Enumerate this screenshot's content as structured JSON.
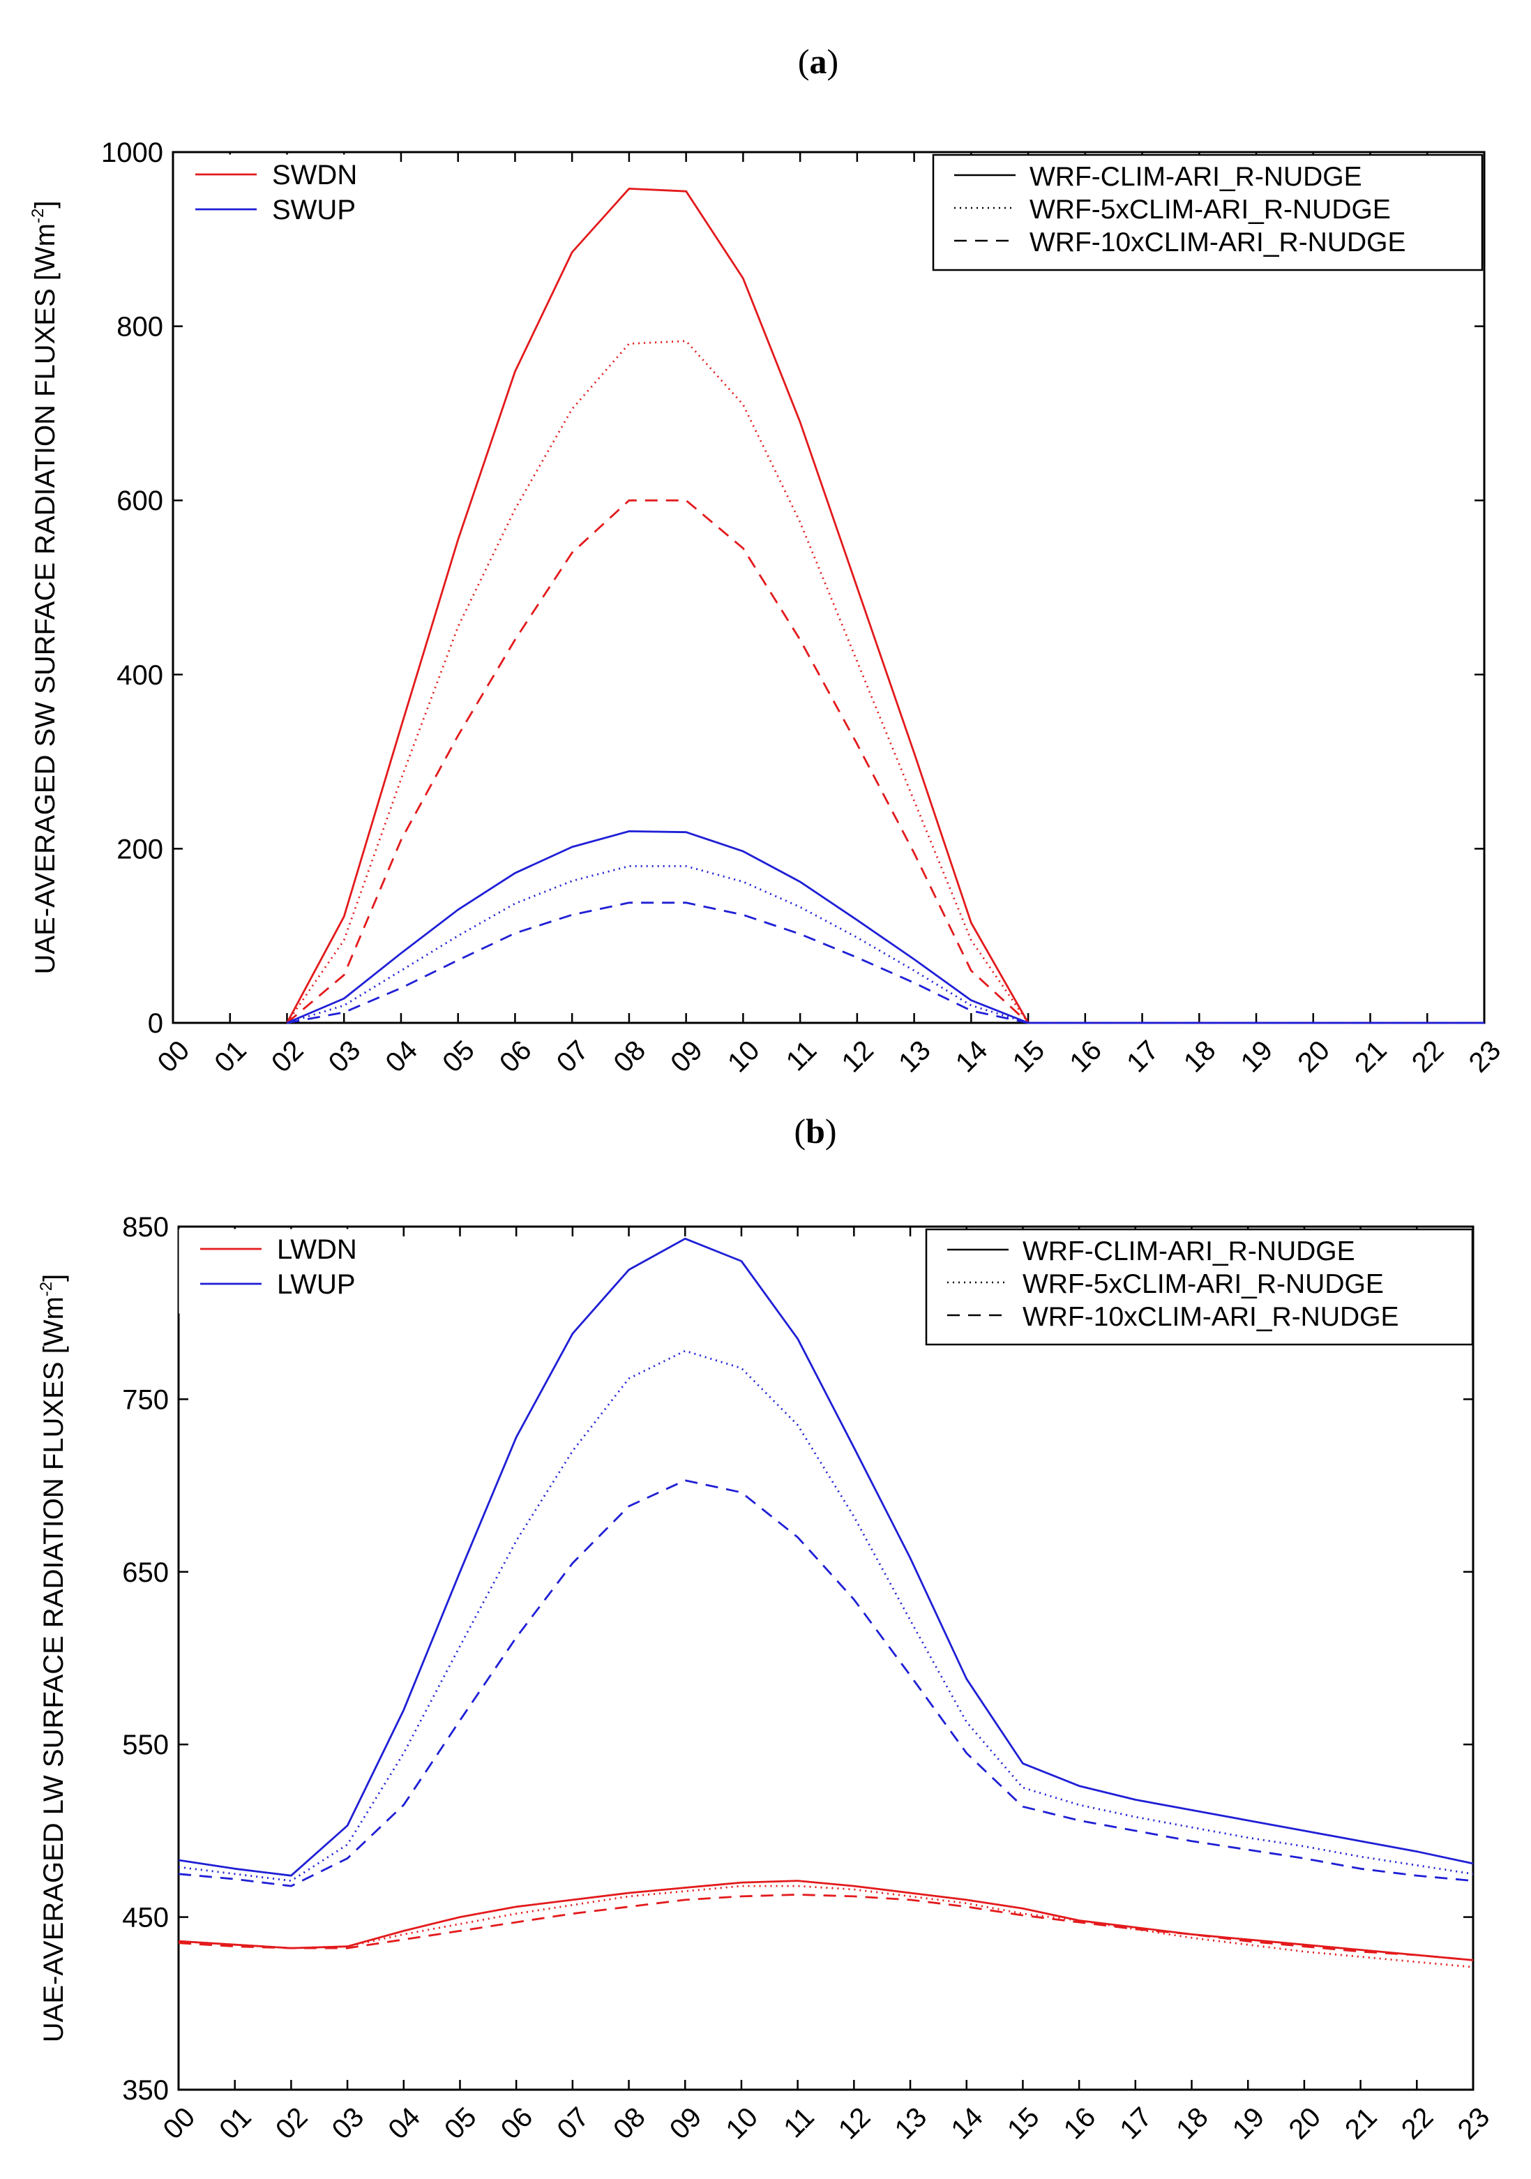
{
  "chart_data": [
    {
      "type": "line",
      "panel_label": "(a)",
      "panel_letter": "a",
      "ylabel": "UAE-AVERAGED SW SURFACE RADIATION FLUXES [Wm",
      "ylabel_sup": "-2",
      "ylabel_end": "]",
      "ylim": [
        0,
        1000
      ],
      "yticks": [
        0,
        200,
        400,
        600,
        800,
        1000
      ],
      "x": [
        "00",
        "01",
        "02",
        "03",
        "04",
        "05",
        "06",
        "07",
        "08",
        "09",
        "10",
        "11",
        "12",
        "13",
        "14",
        "15",
        "16",
        "17",
        "18",
        "19",
        "20",
        "21",
        "22",
        "23"
      ],
      "color_legend": [
        {
          "name": "SWDN",
          "color": "#e31a1c"
        },
        {
          "name": "SWUP",
          "color": "#1f1fd6"
        }
      ],
      "style_legend": [
        {
          "name": "WRF-CLIM-ARI_R-NUDGE",
          "dash": "solid"
        },
        {
          "name": "WRF-5xCLIM-ARI_R-NUDGE",
          "dash": "dotted"
        },
        {
          "name": "WRF-10xCLIM-ARI_R-NUDGE",
          "dash": "dashed"
        }
      ],
      "series": [
        {
          "name": "SWDN WRF-CLIM-ARI_R-NUDGE",
          "color": "#e31a1c",
          "dash": "solid",
          "values": [
            null,
            null,
            0,
            122,
            340,
            555,
            748,
            885,
            958,
            955,
            855,
            690,
            500,
            310,
            115,
            0,
            0,
            0,
            0,
            0,
            0,
            0,
            0,
            0
          ]
        },
        {
          "name": "SWDN WRF-5xCLIM-ARI_R-NUDGE",
          "color": "#e31a1c",
          "dash": "dotted",
          "values": [
            null,
            null,
            0,
            95,
            280,
            455,
            590,
            705,
            780,
            783,
            710,
            575,
            415,
            255,
            95,
            0,
            0,
            0,
            0,
            0,
            0,
            0,
            0,
            0
          ]
        },
        {
          "name": "SWDN WRF-10xCLIM-ARI_R-NUDGE",
          "color": "#e31a1c",
          "dash": "dashed",
          "values": [
            null,
            null,
            0,
            55,
            210,
            330,
            440,
            540,
            600,
            600,
            545,
            440,
            320,
            195,
            60,
            0,
            0,
            0,
            0,
            0,
            0,
            0,
            0,
            0
          ]
        },
        {
          "name": "SWUP WRF-CLIM-ARI_R-NUDGE",
          "color": "#1f1fd6",
          "dash": "solid",
          "values": [
            null,
            null,
            0,
            28,
            80,
            130,
            172,
            202,
            220,
            219,
            197,
            162,
            118,
            73,
            26,
            0,
            0,
            0,
            0,
            0,
            0,
            0,
            0,
            0
          ]
        },
        {
          "name": "SWUP WRF-5xCLIM-ARI_R-NUDGE",
          "color": "#1f1fd6",
          "dash": "dotted",
          "values": [
            null,
            null,
            0,
            20,
            60,
            100,
            137,
            163,
            180,
            180,
            162,
            133,
            98,
            60,
            20,
            0,
            0,
            0,
            0,
            0,
            0,
            0,
            0,
            0
          ]
        },
        {
          "name": "SWUP WRF-10xCLIM-ARI_R-NUDGE",
          "color": "#1f1fd6",
          "dash": "dashed",
          "values": [
            null,
            null,
            0,
            12,
            40,
            72,
            103,
            124,
            138,
            138,
            124,
            102,
            75,
            46,
            14,
            0,
            0,
            0,
            0,
            0,
            0,
            0,
            0,
            0
          ]
        }
      ]
    },
    {
      "type": "line",
      "panel_label": "(b)",
      "panel_letter": "b",
      "ylabel": "UAE-AVERAGED LW SURFACE RADIATION FLUXES [Wm",
      "ylabel_sup": "-2",
      "ylabel_end": "]",
      "ylim": [
        350,
        850
      ],
      "yticks": [
        350,
        450,
        550,
        650,
        750,
        850
      ],
      "x": [
        "00",
        "01",
        "02",
        "03",
        "04",
        "05",
        "06",
        "07",
        "08",
        "09",
        "10",
        "11",
        "12",
        "13",
        "14",
        "15",
        "16",
        "17",
        "18",
        "19",
        "20",
        "21",
        "22",
        "23"
      ],
      "color_legend": [
        {
          "name": "LWDN",
          "color": "#e31a1c"
        },
        {
          "name": "LWUP",
          "color": "#1f1fd6"
        }
      ],
      "style_legend": [
        {
          "name": "WRF-CLIM-ARI_R-NUDGE",
          "dash": "solid"
        },
        {
          "name": "WRF-5xCLIM-ARI_R-NUDGE",
          "dash": "dotted"
        },
        {
          "name": "WRF-10xCLIM-ARI_R-NUDGE",
          "dash": "dashed"
        }
      ],
      "series": [
        {
          "name": "LWDN WRF-CLIM-ARI_R-NUDGE",
          "color": "#e31a1c",
          "dash": "solid",
          "values": [
            436,
            434,
            432,
            433,
            442,
            450,
            456,
            460,
            464,
            467,
            470,
            471,
            468,
            464,
            460,
            455,
            448,
            444,
            440,
            437,
            434,
            431,
            428,
            425
          ]
        },
        {
          "name": "LWDN WRF-5xCLIM-ARI_R-NUDGE",
          "color": "#e31a1c",
          "dash": "dotted",
          "values": [
            436,
            434,
            432,
            433,
            440,
            446,
            452,
            457,
            462,
            465,
            468,
            468,
            466,
            462,
            458,
            452,
            448,
            443,
            438,
            434,
            430,
            427,
            424,
            421
          ]
        },
        {
          "name": "LWDN WRF-10xCLIM-ARI_R-NUDGE",
          "color": "#e31a1c",
          "dash": "dashed",
          "values": [
            435,
            433,
            432,
            432,
            437,
            442,
            447,
            452,
            456,
            460,
            462,
            463,
            462,
            460,
            456,
            451,
            447,
            443,
            440,
            436,
            433,
            430,
            428,
            425
          ]
        },
        {
          "name": "LWUP WRF-CLIM-ARI_R-NUDGE",
          "color": "#1f1fd6",
          "dash": "solid",
          "values": [
            483,
            478,
            474,
            503,
            570,
            650,
            728,
            788,
            825,
            843,
            830,
            785,
            722,
            658,
            588,
            539,
            526,
            518,
            512,
            506,
            500,
            494,
            488,
            481
          ]
        },
        {
          "name": "LWUP WRF-5xCLIM-ARI_R-NUDGE",
          "color": "#1f1fd6",
          "dash": "dotted",
          "values": [
            479,
            475,
            471,
            492,
            545,
            607,
            668,
            720,
            762,
            778,
            768,
            735,
            682,
            622,
            563,
            525,
            515,
            508,
            502,
            496,
            491,
            485,
            480,
            475
          ]
        },
        {
          "name": "LWUP WRF-10xCLIM-ARI_R-NUDGE",
          "color": "#1f1fd6",
          "dash": "dashed",
          "values": [
            475,
            472,
            468,
            484,
            515,
            564,
            612,
            655,
            688,
            703,
            696,
            670,
            634,
            590,
            545,
            514,
            506,
            500,
            494,
            489,
            484,
            478,
            474,
            471
          ]
        }
      ]
    }
  ]
}
